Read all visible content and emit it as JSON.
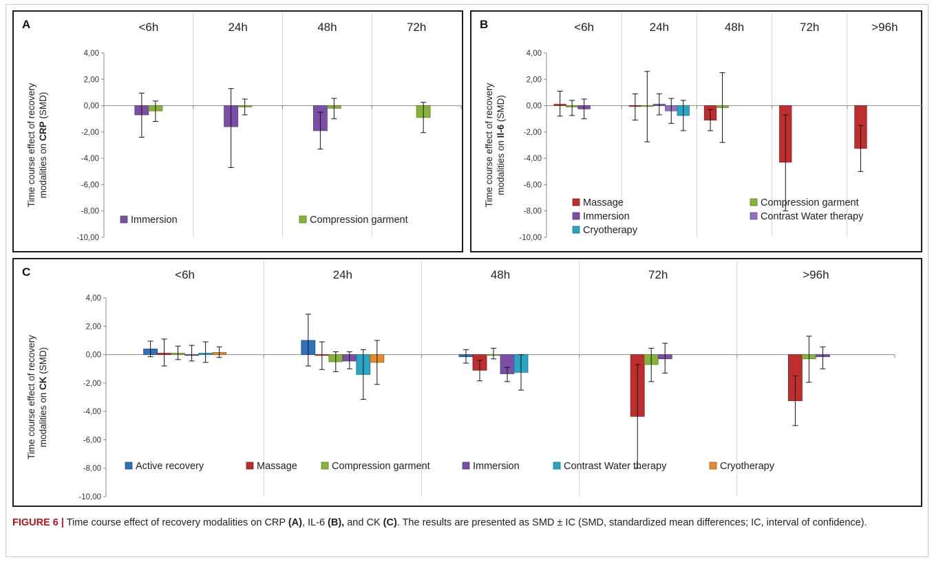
{
  "caption": {
    "figure_label": "FIGURE 6 |",
    "part1": " Time course effect of recovery modalities on CRP ",
    "ref_a": "(A)",
    "part2": ", IL-6 ",
    "ref_b": "(B),",
    "part3": " and CK ",
    "ref_c": "(C)",
    "part4": ". The results are presented as SMD ± IC (SMD, standardized mean differences; IC, interval of confidence)."
  },
  "chart_data": [
    {
      "panel": "A",
      "type": "bar",
      "ylabel_prefix": "Time course effect of recovery modalities on ",
      "ylabel_bold": "CRP",
      "ylabel_suffix": " (SMD)",
      "ylim": [
        -10,
        4
      ],
      "yticks": [
        "4,00",
        "2,00",
        "0,00",
        "-2,00",
        "-4,00",
        "-6,00",
        "-8,00",
        "-10,00"
      ],
      "grid": false,
      "legend": "bottom",
      "categories": [
        "<6h",
        "24h",
        "48h",
        "72h"
      ],
      "series": [
        {
          "name": "Immersion",
          "color": "#7b4fa6",
          "values": [
            -0.7,
            -1.6,
            -1.9,
            null
          ],
          "err_low": [
            -2.4,
            -4.7,
            -3.3,
            null
          ],
          "err_high": [
            0.95,
            1.3,
            -0.5,
            null
          ]
        },
        {
          "name": "Compression garment",
          "color": "#86b43a",
          "values": [
            -0.4,
            -0.1,
            -0.2,
            -0.9
          ],
          "err_low": [
            -1.2,
            -0.7,
            -1.0,
            -2.05
          ],
          "err_high": [
            0.35,
            0.5,
            0.55,
            0.25
          ]
        }
      ]
    },
    {
      "panel": "B",
      "type": "bar",
      "ylabel_prefix": "Time course effect of recovery modalities on ",
      "ylabel_bold": "Il-6",
      "ylabel_suffix": " (SMD)",
      "ylim": [
        -10,
        4
      ],
      "yticks": [
        "4,00",
        "2,00",
        "0,00",
        "-2,00",
        "-4,00",
        "-6,00",
        "-8,00",
        "-10,00"
      ],
      "grid": false,
      "legend": "bottom",
      "categories": [
        "<6h",
        "24h",
        "48h",
        "72h",
        ">96h"
      ],
      "series": [
        {
          "name": "Massage",
          "color": "#bf2e2e",
          "values": [
            0.1,
            -0.05,
            -1.1,
            -4.3,
            -3.25
          ],
          "err_low": [
            -0.8,
            -1.1,
            -1.9,
            -8.0,
            -5.0
          ],
          "err_high": [
            1.1,
            0.9,
            -0.3,
            -0.7,
            -1.5
          ]
        },
        {
          "name": "Compression garment",
          "color": "#86b43a",
          "values": [
            -0.1,
            -0.05,
            -0.15,
            null,
            null
          ],
          "err_low": [
            -0.75,
            -2.75,
            -2.8,
            null,
            null
          ],
          "err_high": [
            0.4,
            2.6,
            2.5,
            null,
            null
          ]
        },
        {
          "name": "Immersion",
          "color": "#7b4fa6",
          "values": [
            -0.25,
            0.1,
            null,
            null,
            null
          ],
          "err_low": [
            -1.0,
            -0.7,
            null,
            null,
            null
          ],
          "err_high": [
            0.5,
            0.9,
            null,
            null,
            null
          ]
        },
        {
          "name": "Contrast Water therapy",
          "color": "#9470c4",
          "values": [
            null,
            -0.4,
            null,
            null,
            null
          ],
          "err_low": [
            null,
            -1.35,
            null,
            null,
            null
          ],
          "err_high": [
            null,
            0.55,
            null,
            null,
            null
          ]
        },
        {
          "name": "Cryotherapy",
          "color": "#2aa6c4",
          "values": [
            null,
            -0.75,
            null,
            null,
            null
          ],
          "err_low": [
            null,
            -1.9,
            null,
            null,
            null
          ],
          "err_high": [
            null,
            0.4,
            null,
            null,
            null
          ]
        }
      ]
    },
    {
      "panel": "C",
      "type": "bar",
      "ylabel_prefix": "Time course effect of recovery modalities on ",
      "ylabel_bold": "CK",
      "ylabel_suffix": " (SMD)",
      "ylim": [
        -10,
        4
      ],
      "yticks": [
        "4,00",
        "2,00",
        "0,00",
        "-2,00",
        "-4,00",
        "-6,00",
        "-8,00",
        "-10,00"
      ],
      "grid": false,
      "legend": "bottom",
      "categories": [
        "<6h",
        "24h",
        "48h",
        "72h",
        ">96h"
      ],
      "series": [
        {
          "name": "Active recovery",
          "color": "#2e71b8",
          "values": [
            0.4,
            1.0,
            -0.15,
            null,
            null
          ],
          "err_low": [
            -0.15,
            -0.8,
            -0.6,
            null,
            null
          ],
          "err_high": [
            0.95,
            2.85,
            0.35,
            null,
            null
          ]
        },
        {
          "name": "Massage",
          "color": "#bf2e2e",
          "values": [
            0.1,
            -0.05,
            -1.1,
            -4.35,
            -3.25
          ],
          "err_low": [
            -0.8,
            -1.05,
            -1.85,
            -8.0,
            -5.0
          ],
          "err_high": [
            1.1,
            0.9,
            -0.4,
            -0.7,
            -1.5
          ]
        },
        {
          "name": "Compression garment",
          "color": "#86b43a",
          "values": [
            0.1,
            -0.5,
            0.0,
            -0.7,
            -0.3
          ],
          "err_low": [
            -0.35,
            -1.2,
            -0.3,
            -1.9,
            -1.95
          ],
          "err_high": [
            0.6,
            0.2,
            0.45,
            0.45,
            1.3
          ]
        },
        {
          "name": "Immersion",
          "color": "#7b4fa6",
          "values": [
            0.0,
            -0.45,
            -1.35,
            -0.3,
            -0.15
          ],
          "err_low": [
            -0.45,
            -1.0,
            -1.9,
            -1.3,
            -1.0
          ],
          "err_high": [
            0.65,
            0.2,
            -0.9,
            0.8,
            0.55
          ]
        },
        {
          "name": "Contrast Water therapy",
          "color": "#2aa6c4",
          "values": [
            0.1,
            -1.4,
            -1.25,
            null,
            null
          ],
          "err_low": [
            -0.55,
            -3.15,
            -2.5,
            null,
            null
          ],
          "err_high": [
            0.9,
            0.35,
            0.0,
            null,
            null
          ]
        },
        {
          "name": "Cryotherapy",
          "color": "#e58a2a",
          "values": [
            0.15,
            -0.55,
            null,
            null,
            null
          ],
          "err_low": [
            -0.2,
            -2.1,
            null,
            null,
            null
          ],
          "err_high": [
            0.55,
            1.0,
            null,
            null,
            null
          ]
        }
      ]
    }
  ]
}
